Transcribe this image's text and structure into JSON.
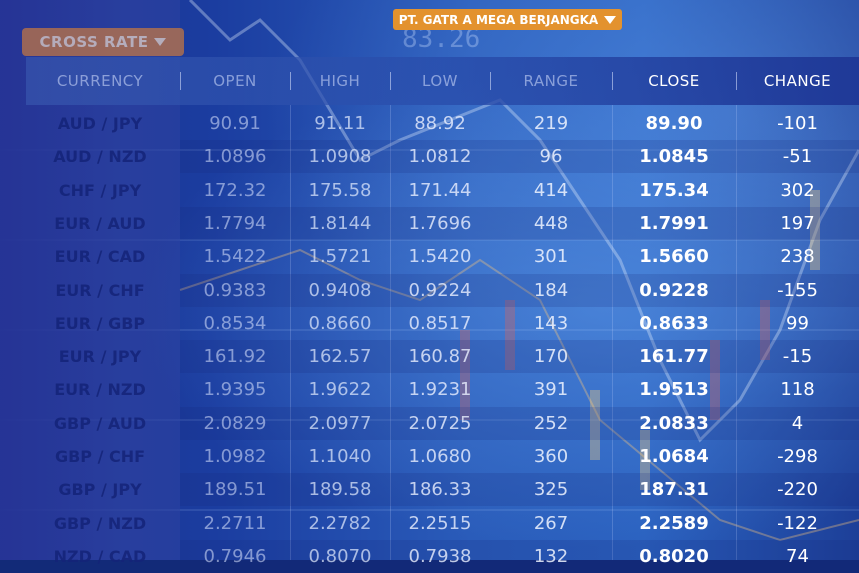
{
  "header_title": "PT. GATR A MEGA BERJANGKA",
  "cross_rate_label": "CROSS RATE",
  "ghost_number": "83.26",
  "columns": [
    "CURRENCY",
    "OPEN",
    "HIGH",
    "LOW",
    "RANGE",
    "CLOSE",
    "CHANGE"
  ],
  "rows": [
    {
      "pair": "AUD / JPY",
      "open": "90.91",
      "high": "91.11",
      "low": "88.92",
      "range": "219",
      "close": "89.90",
      "change": "-101"
    },
    {
      "pair": "AUD / NZD",
      "open": "1.0896",
      "high": "1.0908",
      "low": "1.0812",
      "range": "96",
      "close": "1.0845",
      "change": "-51"
    },
    {
      "pair": "CHF / JPY",
      "open": "172.32",
      "high": "175.58",
      "low": "171.44",
      "range": "414",
      "close": "175.34",
      "change": "302"
    },
    {
      "pair": "EUR / AUD",
      "open": "1.7794",
      "high": "1.8144",
      "low": "1.7696",
      "range": "448",
      "close": "1.7991",
      "change": "197"
    },
    {
      "pair": "EUR / CAD",
      "open": "1.5422",
      "high": "1.5721",
      "low": "1.5420",
      "range": "301",
      "close": "1.5660",
      "change": "238"
    },
    {
      "pair": "EUR / CHF",
      "open": "0.9383",
      "high": "0.9408",
      "low": "0.9224",
      "range": "184",
      "close": "0.9228",
      "change": "-155"
    },
    {
      "pair": "EUR / GBP",
      "open": "0.8534",
      "high": "0.8660",
      "low": "0.8517",
      "range": "143",
      "close": "0.8633",
      "change": "99"
    },
    {
      "pair": "EUR / JPY",
      "open": "161.92",
      "high": "162.57",
      "low": "160.87",
      "range": "170",
      "close": "161.77",
      "change": "-15"
    },
    {
      "pair": "EUR / NZD",
      "open": "1.9395",
      "high": "1.9622",
      "low": "1.9231",
      "range": "391",
      "close": "1.9513",
      "change": "118"
    },
    {
      "pair": "GBP / AUD",
      "open": "2.0829",
      "high": "2.0977",
      "low": "2.0725",
      "range": "252",
      "close": "2.0833",
      "change": "4"
    },
    {
      "pair": "GBP / CHF",
      "open": "1.0982",
      "high": "1.1040",
      "low": "1.0680",
      "range": "360",
      "close": "1.0684",
      "change": "-298"
    },
    {
      "pair": "GBP / JPY",
      "open": "189.51",
      "high": "189.58",
      "low": "186.33",
      "range": "325",
      "close": "187.31",
      "change": "-220"
    },
    {
      "pair": "GBP / NZD",
      "open": "2.2711",
      "high": "2.2782",
      "low": "2.2515",
      "range": "267",
      "close": "2.2589",
      "change": "-122"
    },
    {
      "pair": "NZD / CAD",
      "open": "0.7946",
      "high": "0.8070",
      "low": "0.7938",
      "range": "132",
      "close": "0.8020",
      "change": "74"
    }
  ],
  "colors": {
    "accent_orange": "#e3922e",
    "cross_rate_orange": "#c9793f",
    "background_blue": "#1b3da0"
  }
}
